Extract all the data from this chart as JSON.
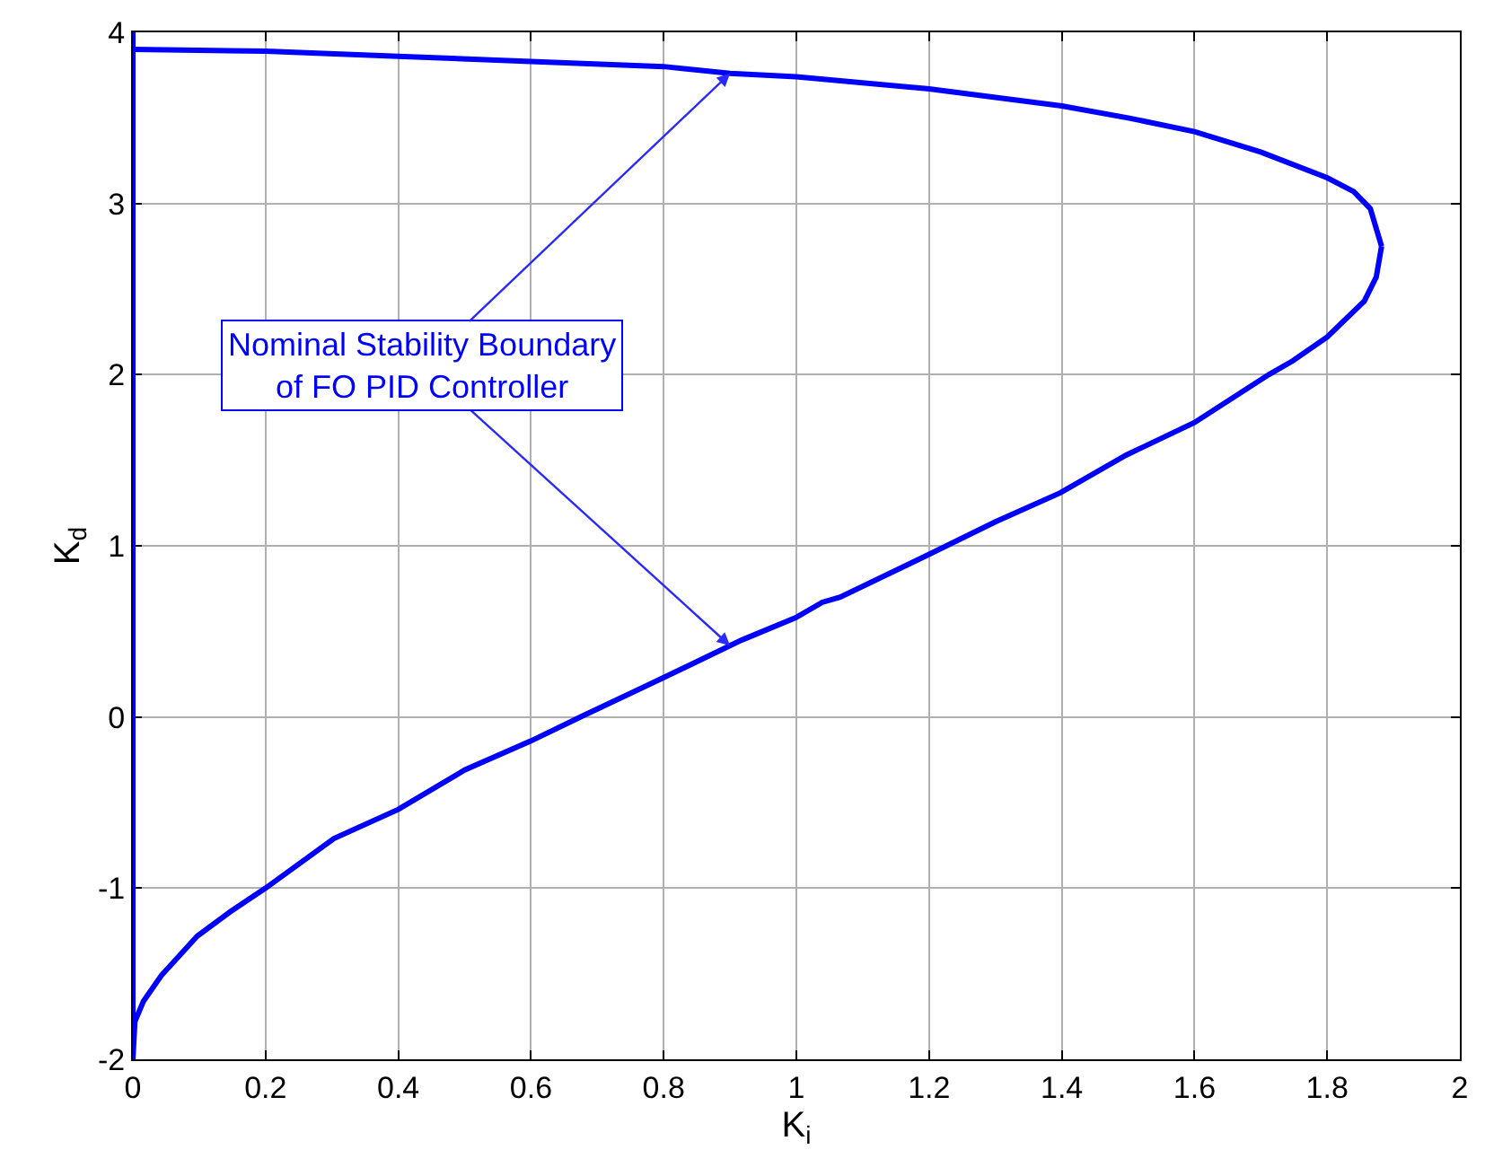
{
  "chart_data": {
    "type": "line",
    "xlabel": "K$_{i}$",
    "ylabel": "K$_{d}$",
    "series": [
      {
        "color": "#0000ff",
        "x": [
          0,
          0.2,
          0.4,
          0.6,
          0.8,
          0.9,
          1.0,
          1.2,
          1.4,
          1.5,
          1.6,
          1.7,
          1.8,
          1.84,
          1.865,
          1.882
        ],
        "values": [
          3.9,
          3.89,
          3.86,
          3.83,
          3.8,
          3.76,
          3.74,
          3.67,
          3.57,
          3.5,
          3.42,
          3.3,
          3.15,
          3.07,
          2.97,
          2.75
        ]
      },
      {
        "color": "#0000ff",
        "x": [
          0,
          0.003,
          0.016,
          0.043,
          0.097,
          0.146,
          0.2,
          0.303,
          0.4,
          0.5,
          0.6,
          0.68,
          0.8,
          0.918,
          0.999,
          1.039,
          1.066,
          1.2,
          1.3,
          1.398,
          1.497,
          1.6,
          1.712,
          1.748,
          1.8,
          1.856,
          1.874,
          1.882
        ],
        "values": [
          -2,
          -1.78,
          -1.66,
          -1.51,
          -1.28,
          -1.14,
          -1.0,
          -0.71,
          -0.54,
          -0.31,
          -0.14,
          0.01,
          0.23,
          0.45,
          0.58,
          0.67,
          0.7,
          0.95,
          1.14,
          1.31,
          1.53,
          1.72,
          2.0,
          2.08,
          2.22,
          2.43,
          2.57,
          2.75
        ]
      }
    ],
    "ref_lines": [
      {
        "axis": "x",
        "value": 0,
        "color": "#0000ff"
      }
    ],
    "xlim": [
      0,
      2
    ],
    "xticks": [
      0,
      0.2,
      0.4,
      0.6,
      0.8,
      1,
      1.2,
      1.4,
      1.6,
      1.8,
      2
    ],
    "ylim": [
      -2,
      4
    ],
    "yticks": [
      -2,
      -1,
      0,
      1,
      2,
      3,
      4
    ],
    "grid": true,
    "marker": "none",
    "line_style": "solid",
    "annotations": [
      {
        "text": "Nominal Stability Boundary\nof FO PID Controller",
        "x": 0.9,
        "y": 3.76
      }
    ]
  }
}
